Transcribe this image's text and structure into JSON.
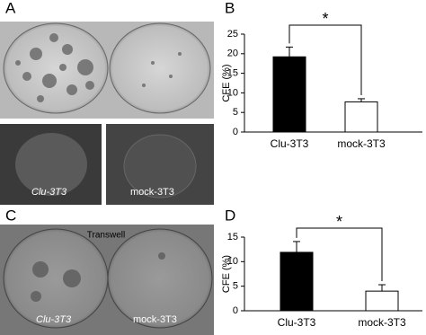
{
  "chart_data": [
    {
      "type": "bar",
      "panel_label": "B",
      "ylabel": "CFE (%)",
      "categories": [
        "Clu-3T3",
        "mock-3T3"
      ],
      "values": [
        19.2,
        7.7
      ],
      "errors": [
        2.5,
        0.8
      ],
      "colors": [
        "#000000",
        "#ffffff"
      ],
      "ylim": [
        0,
        25
      ],
      "yticks": [
        0,
        5,
        10,
        15,
        20,
        25
      ],
      "annotation": "*"
    },
    {
      "type": "bar",
      "panel_label": "D",
      "ylabel": "CFE (%)",
      "categories": [
        "Clu-3T3",
        "mock-3T3"
      ],
      "values": [
        11.9,
        4.0
      ],
      "errors": [
        2.2,
        1.3
      ],
      "colors": [
        "#000000",
        "#ffffff"
      ],
      "ylim": [
        0,
        15
      ],
      "yticks": [
        0,
        5,
        10,
        15
      ],
      "annotation": "*"
    }
  ],
  "photos": {
    "panel_a": "A",
    "panel_c": "C",
    "caption_left": "Clu-3T3",
    "caption_right": "mock-3T3",
    "transwell": "Transwell",
    "c_left": "Clu-3T3",
    "c_right": "mock-3T3"
  }
}
